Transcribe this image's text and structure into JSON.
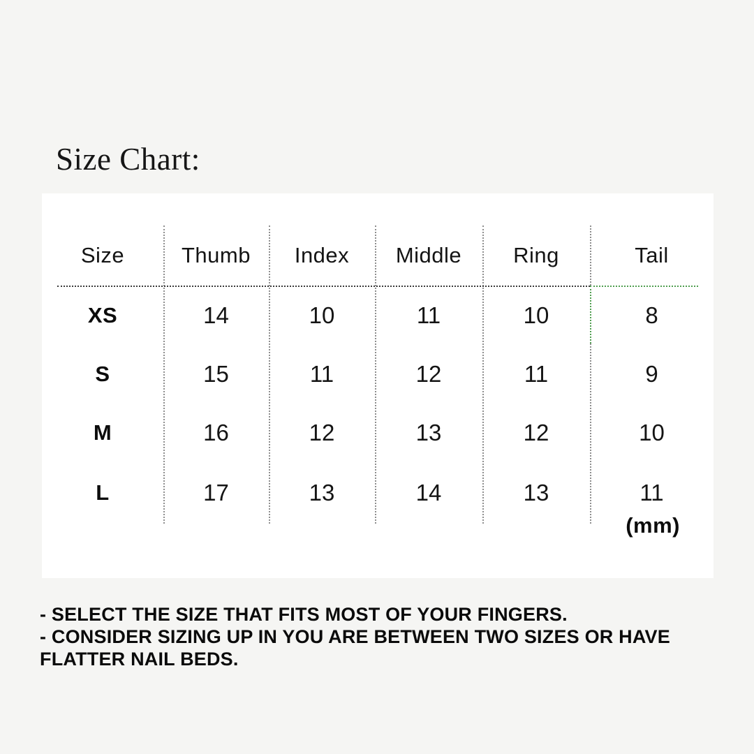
{
  "page": {
    "title": "Size Chart:",
    "unit_label": "(mm)"
  },
  "chart_data": {
    "type": "table",
    "title": "Size Chart:",
    "columns": [
      "Size",
      "Thumb",
      "Index",
      "Middle",
      "Ring",
      "Tail"
    ],
    "rows": [
      [
        "XS",
        14,
        10,
        11,
        10,
        8
      ],
      [
        "S",
        15,
        11,
        12,
        11,
        9
      ],
      [
        "M",
        16,
        12,
        13,
        12,
        10
      ],
      [
        "L",
        17,
        13,
        14,
        13,
        11
      ]
    ],
    "unit": "mm",
    "layout_hints": {
      "header_rule": "dotted",
      "column_dividers": "dotted",
      "accent_segment": "green dotted rule under Tail column"
    }
  },
  "notes": {
    "lines": [
      "- SELECT THE SIZE THAT FITS MOST OF YOUR FINGERS.",
      "- CONSIDER SIZING UP IN YOU ARE BETWEEN TWO SIZES OR HAVE",
      "FLATTER NAIL BEDS."
    ]
  },
  "colors": {
    "background": "#f5f5f3",
    "card": "#ffffff",
    "text": "#121212",
    "divider_gray": "#8e8e8e",
    "rule_dark": "#3a3a3a",
    "accent_green": "#4f9e4f"
  }
}
